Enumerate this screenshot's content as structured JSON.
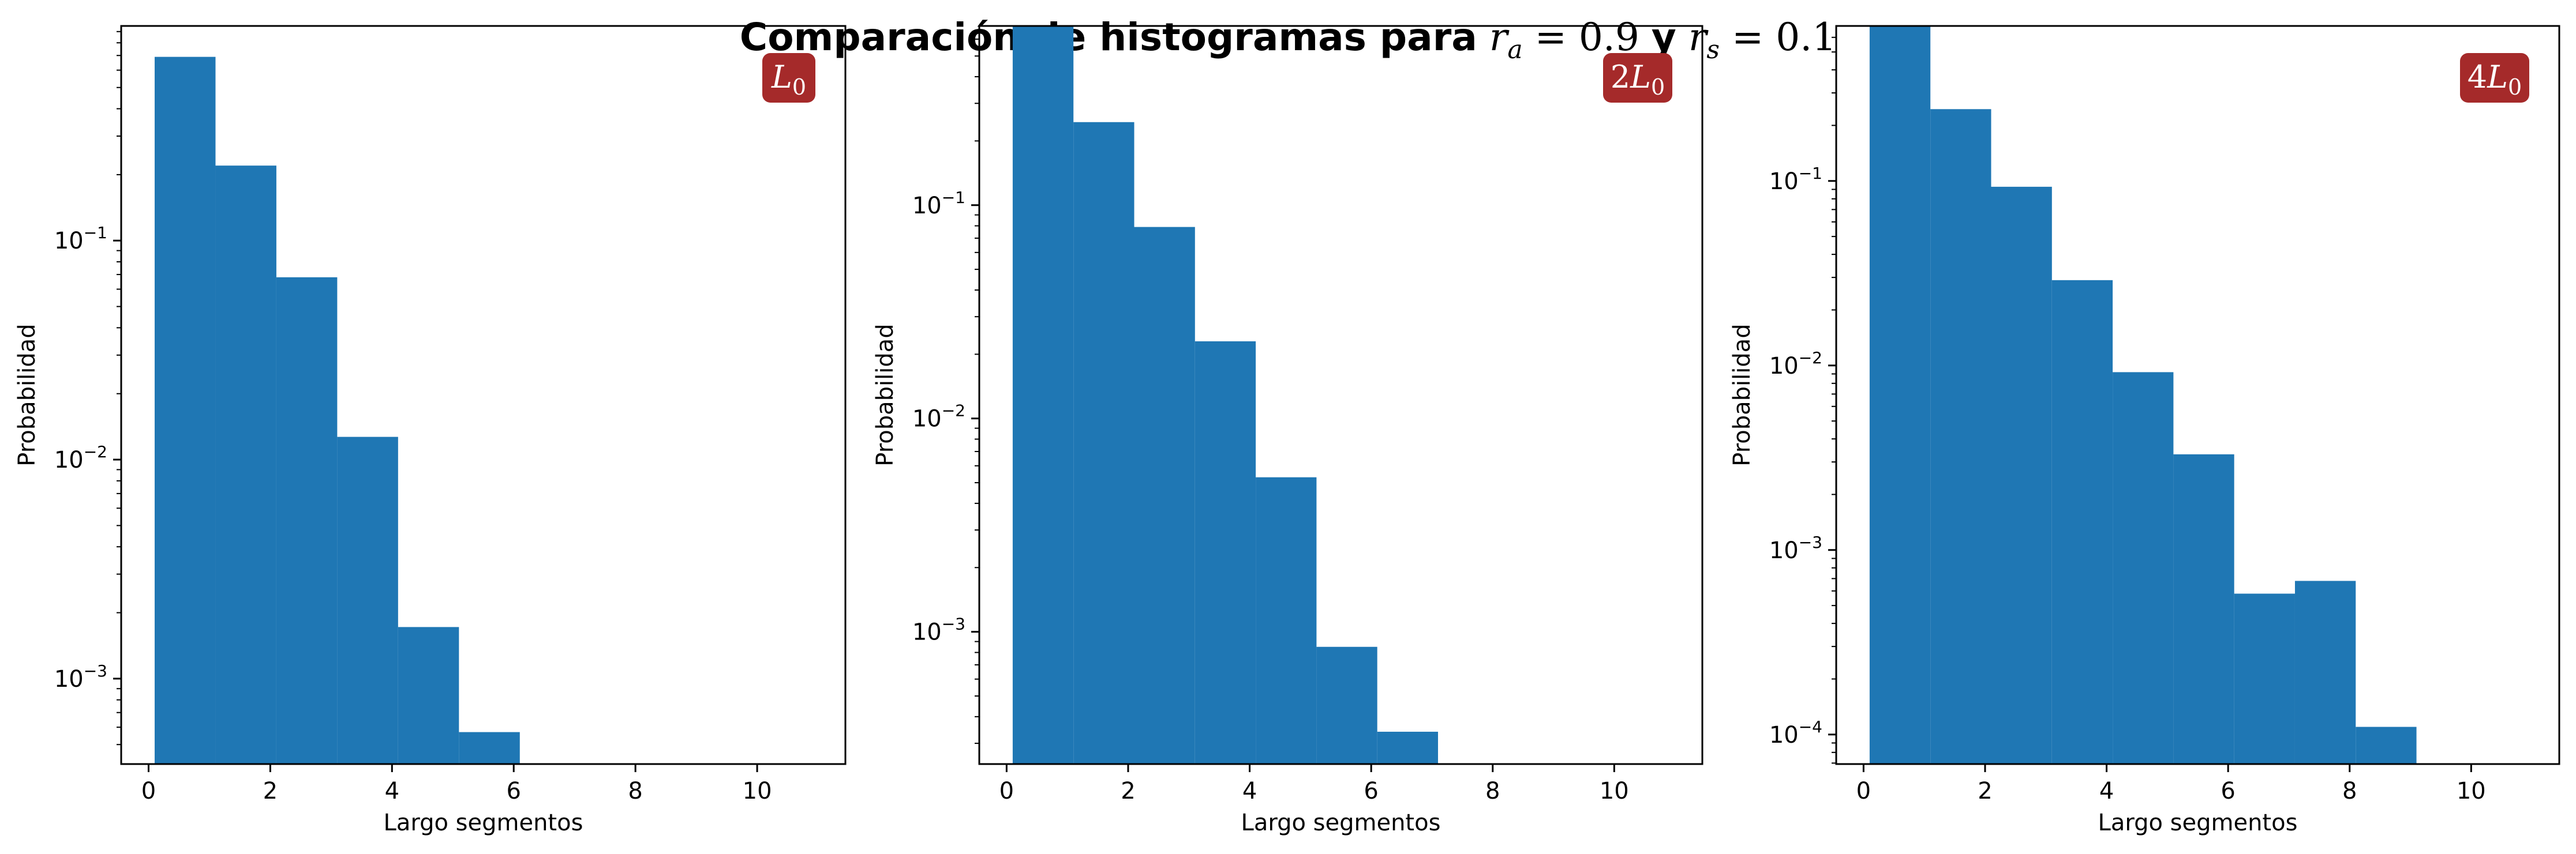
{
  "figure": {
    "title_text": "Comparación de histogramas para",
    "title_conj": "y",
    "ra_symbol": "r",
    "ra_sub": "a",
    "ra_value": "= 0.9",
    "rs_symbol": "r",
    "rs_sub": "s",
    "rs_value": "= 0.1"
  },
  "colors": {
    "bar": "#1f77b4",
    "badge": "#a52a2a",
    "badge_text": "#ffffff",
    "axis": "#000000"
  },
  "chart_data": [
    {
      "type": "bar",
      "badge": {
        "coef": "",
        "symbol": "L",
        "sub": "0"
      },
      "xlabel": "Largo segmentos",
      "ylabel": "Probabilidad",
      "yscale": "log",
      "xlim": [
        -0.45,
        11.45
      ],
      "ylim_exp": [
        -3.39,
        -0.02
      ],
      "xticks": [
        "0",
        "2",
        "4",
        "6",
        "8",
        "10"
      ],
      "yticks": [
        {
          "base": "10",
          "exp": "−1",
          "log": -1
        },
        {
          "base": "10",
          "exp": "−2",
          "log": -2
        },
        {
          "base": "10",
          "exp": "−3",
          "log": -3
        }
      ],
      "bin_edges": [
        0.1,
        1.1,
        2.1,
        3.1,
        4.1,
        5.1,
        6.1
      ],
      "values": [
        0.69,
        0.22,
        0.068,
        0.0127,
        0.00172,
        0.00057
      ]
    },
    {
      "type": "bar",
      "badge": {
        "coef": "2",
        "symbol": "L",
        "sub": "0"
      },
      "xlabel": "Largo segmentos",
      "ylabel": "Probabilidad",
      "yscale": "log",
      "xlim": [
        -0.45,
        11.45
      ],
      "ylim_exp": [
        -3.62,
        -0.16
      ],
      "xticks": [
        "0",
        "2",
        "4",
        "6",
        "8",
        "10"
      ],
      "yticks": [
        {
          "base": "10",
          "exp": "−1",
          "log": -1
        },
        {
          "base": "10",
          "exp": "−2",
          "log": -2
        },
        {
          "base": "10",
          "exp": "−3",
          "log": -3
        }
      ],
      "bin_edges": [
        0.1,
        1.1,
        2.1,
        3.1,
        4.1,
        5.1,
        6.1,
        7.1
      ],
      "values": [
        0.69,
        0.245,
        0.079,
        0.023,
        0.0053,
        0.00085,
        0.00034
      ]
    },
    {
      "type": "bar",
      "badge": {
        "coef": "4",
        "symbol": "L",
        "sub": "0"
      },
      "xlabel": "Largo segmentos",
      "ylabel": "Probabilidad",
      "yscale": "log",
      "xlim": [
        -0.45,
        11.45
      ],
      "ylim_exp": [
        -4.16,
        -0.16
      ],
      "xticks": [
        "0",
        "2",
        "4",
        "6",
        "8",
        "10"
      ],
      "yticks": [
        {
          "base": "10",
          "exp": "−1",
          "log": -1
        },
        {
          "base": "10",
          "exp": "−2",
          "log": -2
        },
        {
          "base": "10",
          "exp": "−3",
          "log": -3
        },
        {
          "base": "10",
          "exp": "−4",
          "log": -4
        }
      ],
      "bin_edges": [
        0.1,
        1.1,
        2.1,
        3.1,
        4.1,
        5.1,
        6.1,
        7.1,
        8.1,
        9.1
      ],
      "values": [
        0.69,
        0.245,
        0.093,
        0.029,
        0.0092,
        0.0033,
        0.00058,
        0.00068,
        0.00011
      ]
    }
  ]
}
